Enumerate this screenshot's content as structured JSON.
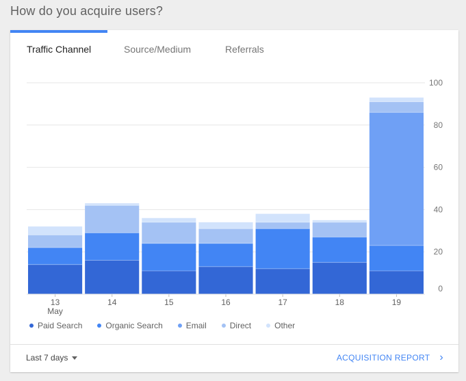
{
  "page": {
    "title": "How do you acquire users?"
  },
  "tabs": [
    {
      "label": "Traffic Channel",
      "active": true
    },
    {
      "label": "Source/Medium",
      "active": false
    },
    {
      "label": "Referrals",
      "active": false
    }
  ],
  "colors": {
    "accent": "#4285f4",
    "paid_search": "#3367d6",
    "organic_search": "#4285f4",
    "email": "#6fa0f5",
    "direct": "#a4c2f4",
    "other": "#d2e3fc",
    "link": "#4285f4"
  },
  "chart_data": {
    "type": "bar",
    "stacked": true,
    "categories": [
      "13",
      "14",
      "15",
      "16",
      "17",
      "18",
      "19"
    ],
    "category_sublabels": [
      "May",
      "",
      "",
      "",
      "",
      "",
      ""
    ],
    "series": [
      {
        "name": "Paid Search",
        "values": [
          14,
          16,
          11,
          13,
          12,
          15,
          11
        ]
      },
      {
        "name": "Organic Search",
        "values": [
          8,
          13,
          13,
          11,
          19,
          12,
          12
        ]
      },
      {
        "name": "Email",
        "values": [
          0,
          0,
          0,
          0,
          0,
          0,
          63
        ]
      },
      {
        "name": "Direct",
        "values": [
          6,
          13,
          10,
          7,
          3,
          7,
          5
        ]
      },
      {
        "name": "Other",
        "values": [
          4,
          1,
          2,
          3,
          4,
          1,
          2
        ]
      }
    ],
    "ylim": [
      0,
      100
    ],
    "yticks": [
      0,
      20,
      40,
      60,
      80,
      100
    ],
    "y_axis_position": "right",
    "grid": true,
    "legend": "bottom"
  },
  "footer": {
    "range_label": "Last 7 days",
    "report_label": "ACQUISITION REPORT"
  }
}
